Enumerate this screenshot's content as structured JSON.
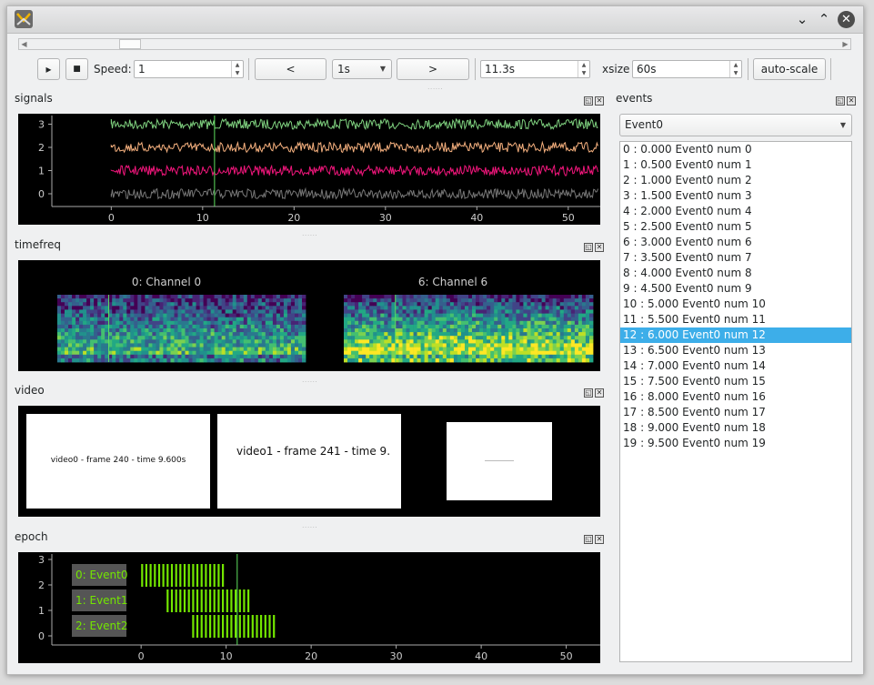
{
  "window": {
    "titlebar_icons": [
      "chevron-down-icon",
      "chevron-up-icon",
      "close-icon"
    ]
  },
  "toolbar": {
    "play_icon": "▸",
    "stop_icon": "■",
    "speed_label": "Speed:",
    "speed_value": "1",
    "prev_label": "<",
    "step_value": "1s",
    "next_label": ">",
    "time_value": "11.3s",
    "xsize_label": "xsize",
    "xsize_value": "60s",
    "autoscale_label": "auto-scale"
  },
  "docks": {
    "signals": "signals",
    "timefreq": "timefreq",
    "video": "video",
    "epoch": "epoch",
    "events": "events"
  },
  "signals": {
    "y_ticks": [
      "3",
      "2",
      "1",
      "0"
    ],
    "x_ticks": [
      "0",
      "10",
      "20",
      "30",
      "40",
      "50"
    ],
    "colors": [
      "#7fd17f",
      "#f5b07e",
      "#f2167c",
      "#777777"
    ]
  },
  "timefreq": {
    "titles": [
      "0: Channel 0",
      "6: Channel 6"
    ]
  },
  "video": {
    "captions": [
      "video0 - frame  240 - time  9.600s",
      "video1 - frame  241 - time  9."
    ]
  },
  "epoch": {
    "y_ticks": [
      "3",
      "2",
      "1",
      "0"
    ],
    "x_ticks": [
      "0",
      "10",
      "20",
      "30",
      "40",
      "50"
    ],
    "labels": [
      "0: Event0",
      "1: Event1",
      "2: Event2"
    ],
    "color": "#73e600"
  },
  "events": {
    "selector": "Event0",
    "items": [
      "0 : 0.000 Event0 num 0",
      "1 : 0.500 Event0 num 1",
      "2 : 1.000 Event0 num 2",
      "3 : 1.500 Event0 num 3",
      "4 : 2.000 Event0 num 4",
      "5 : 2.500 Event0 num 5",
      "6 : 3.000 Event0 num 6",
      "7 : 3.500 Event0 num 7",
      "8 : 4.000 Event0 num 8",
      "9 : 4.500 Event0 num 9",
      "10 : 5.000 Event0 num 10",
      "11 : 5.500 Event0 num 11",
      "12 : 6.000 Event0 num 12",
      "13 : 6.500 Event0 num 13",
      "14 : 7.000 Event0 num 14",
      "15 : 7.500 Event0 num 15",
      "16 : 8.000 Event0 num 16",
      "17 : 8.500 Event0 num 17",
      "18 : 9.000 Event0 num 18",
      "19 : 9.500 Event0 num 19"
    ],
    "selected_index": 12
  }
}
